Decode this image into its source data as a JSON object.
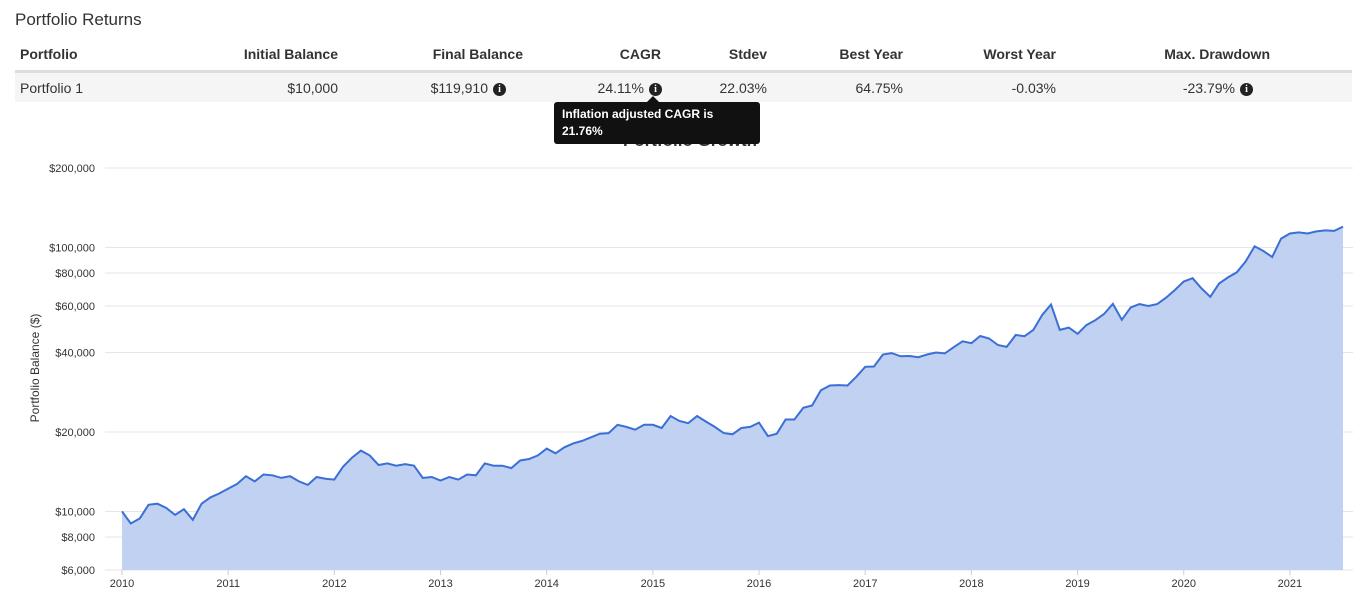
{
  "header": {
    "title": "Portfolio Returns"
  },
  "table": {
    "columns": [
      "Portfolio",
      "Initial Balance",
      "Final Balance",
      "CAGR",
      "Stdev",
      "Best Year",
      "Worst Year",
      "Max. Drawdown"
    ],
    "rows": [
      [
        "Portfolio 1",
        "$10,000",
        "$119,910",
        "24.11%",
        "22.03%",
        "64.75%",
        "-0.03%",
        "-23.79%"
      ]
    ]
  },
  "tooltip": {
    "text": "Inflation adjusted CAGR is 21.76%"
  },
  "chart_data": {
    "type": "area",
    "title": "Portfolio Growth",
    "y_label": "Portfolio Balance ($)",
    "log_scale": true,
    "grid": true,
    "xlim": [
      2010,
      2021.5
    ],
    "xticks": [
      2010,
      2011,
      2012,
      2013,
      2014,
      2015,
      2016,
      2017,
      2018,
      2019,
      2020,
      2021
    ],
    "ylim": [
      6000,
      200000
    ],
    "yticks": [
      {
        "value": 6000,
        "label": "$6,000"
      },
      {
        "value": 8000,
        "label": "$8,000"
      },
      {
        "value": 10000,
        "label": "$10,000"
      },
      {
        "value": 20000,
        "label": "$20,000"
      },
      {
        "value": 40000,
        "label": "$40,000"
      },
      {
        "value": 60000,
        "label": "$60,000"
      },
      {
        "value": 80000,
        "label": "$80,000"
      },
      {
        "value": 100000,
        "label": "$100,000"
      },
      {
        "value": 200000,
        "label": "$200,000"
      }
    ],
    "x": [
      2010,
      2010.083,
      2010.167,
      2010.25,
      2010.333,
      2010.417,
      2010.5,
      2010.583,
      2010.667,
      2010.75,
      2010.833,
      2010.917,
      2011,
      2011.083,
      2011.167,
      2011.25,
      2011.333,
      2011.417,
      2011.5,
      2011.583,
      2011.667,
      2011.75,
      2011.833,
      2011.917,
      2012,
      2012.083,
      2012.167,
      2012.25,
      2012.333,
      2012.417,
      2012.5,
      2012.583,
      2012.667,
      2012.75,
      2012.833,
      2012.917,
      2013,
      2013.083,
      2013.167,
      2013.25,
      2013.333,
      2013.417,
      2013.5,
      2013.583,
      2013.667,
      2013.75,
      2013.833,
      2013.917,
      2014,
      2014.083,
      2014.167,
      2014.25,
      2014.333,
      2014.417,
      2014.5,
      2014.583,
      2014.667,
      2014.75,
      2014.833,
      2014.917,
      2015,
      2015.083,
      2015.167,
      2015.25,
      2015.333,
      2015.417,
      2015.5,
      2015.583,
      2015.667,
      2015.75,
      2015.833,
      2015.917,
      2016,
      2016.083,
      2016.167,
      2016.25,
      2016.333,
      2016.417,
      2016.5,
      2016.583,
      2016.667,
      2016.75,
      2016.833,
      2016.917,
      2017,
      2017.083,
      2017.167,
      2017.25,
      2017.333,
      2017.417,
      2017.5,
      2017.583,
      2017.667,
      2017.75,
      2017.833,
      2017.917,
      2018,
      2018.083,
      2018.167,
      2018.25,
      2018.333,
      2018.417,
      2018.5,
      2018.583,
      2018.667,
      2018.75,
      2018.833,
      2018.917,
      2019,
      2019.083,
      2019.167,
      2019.25,
      2019.333,
      2019.417,
      2019.5,
      2019.583,
      2019.667,
      2019.75,
      2019.833,
      2019.917,
      2020,
      2020.083,
      2020.167,
      2020.25,
      2020.333,
      2020.417,
      2020.5,
      2020.583,
      2020.667,
      2020.75,
      2020.833,
      2020.917,
      2021,
      2021.083,
      2021.167,
      2021.25,
      2021.333,
      2021.417,
      2021.5
    ],
    "series": [
      {
        "name": "Portfolio 1",
        "color": "#3b6fd6",
        "fill": "#c0d1f1",
        "values": [
          10000,
          9000,
          9400,
          10600,
          10700,
          10300,
          9700,
          10200,
          9300,
          10700,
          11300,
          11700,
          12200,
          12700,
          13600,
          13000,
          13800,
          13700,
          13400,
          13600,
          13000,
          12600,
          13500,
          13300,
          13200,
          14800,
          16000,
          17000,
          16300,
          15000,
          15200,
          14900,
          15100,
          14900,
          13400,
          13500,
          13100,
          13500,
          13200,
          13800,
          13700,
          15200,
          14900,
          14900,
          14600,
          15600,
          15800,
          16300,
          17300,
          16600,
          17500,
          18100,
          18500,
          19100,
          19700,
          19800,
          21300,
          20900,
          20400,
          21300,
          21300,
          20700,
          23000,
          22000,
          21600,
          23000,
          21900,
          20900,
          19800,
          19600,
          20700,
          20900,
          21700,
          19300,
          19700,
          22300,
          22300,
          24700,
          25200,
          28800,
          30000,
          30100,
          30000,
          32400,
          35300,
          35400,
          39300,
          39800,
          38700,
          38800,
          38400,
          39300,
          40000,
          39700,
          41900,
          44100,
          43400,
          46200,
          45200,
          42700,
          42000,
          46600,
          46100,
          48700,
          55500,
          60800,
          48700,
          49700,
          47100,
          50800,
          53000,
          56000,
          61100,
          53200,
          59300,
          61000,
          60000,
          61000,
          64500,
          69000,
          74300,
          76500,
          70000,
          65000,
          73000,
          77000,
          80500,
          88500,
          101000,
          97000,
          92000,
          108000,
          113000,
          114000,
          113000,
          115000,
          116000,
          115500,
          119910
        ]
      }
    ]
  }
}
